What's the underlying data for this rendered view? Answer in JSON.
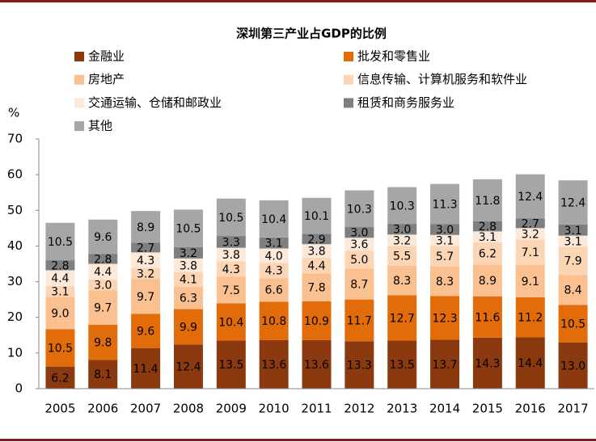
{
  "chart_data": {
    "type": "stacked_bar",
    "title": "深圳第三产业占GDP的比例",
    "y_label": "%",
    "categories": [
      "2005",
      "2006",
      "2007",
      "2008",
      "2009",
      "2010",
      "2011",
      "2012",
      "2013",
      "2014",
      "2015",
      "2016",
      "2017"
    ],
    "ylim": [
      0,
      70
    ],
    "yticks": [
      0,
      10,
      20,
      30,
      40,
      50,
      60,
      70
    ],
    "grid": false,
    "series": [
      {
        "name": "金融业",
        "color": "#8B3A0F",
        "values": [
          6.2,
          8.1,
          11.4,
          12.4,
          13.5,
          13.6,
          13.6,
          13.3,
          13.5,
          13.7,
          14.3,
          14.4,
          13.0
        ],
        "value_labels": [
          "6.2",
          "8.1",
          "11.4",
          "12.4",
          "13.5",
          "13.6",
          "13.6",
          "13.3",
          "13.5",
          "13.7",
          "14.3",
          "14.4",
          "13.0"
        ]
      },
      {
        "name": "批发和零售业",
        "color": "#E36C0A",
        "values": [
          10.5,
          9.8,
          9.6,
          9.9,
          10.4,
          10.8,
          10.9,
          11.7,
          12.7,
          12.3,
          11.6,
          11.2,
          10.5
        ],
        "value_labels": [
          "10.5",
          "9.8",
          "9.6",
          "9.9",
          "10.4",
          "10.8",
          "10.9",
          "11.7",
          "12.7",
          "12.3",
          "11.6",
          "11.2",
          "10.5"
        ]
      },
      {
        "name": "房地产",
        "color": "#FAC090",
        "values": [
          9.0,
          9.7,
          9.7,
          6.3,
          7.5,
          6.6,
          7.8,
          8.7,
          8.3,
          8.3,
          8.9,
          9.1,
          8.4
        ],
        "value_labels": [
          "9.0",
          "9.7",
          "9.7",
          "6.3",
          "7.5",
          "6.6",
          "7.8",
          "8.7",
          "8.3",
          "8.3",
          "8.9",
          "9.1",
          "8.4"
        ]
      },
      {
        "name": "信息传输、计算机服务和软件业",
        "color": "#FCD5B5",
        "values": [
          3.1,
          3.0,
          3.2,
          4.1,
          4.3,
          4.3,
          4.4,
          5.0,
          5.5,
          5.7,
          6.2,
          7.1,
          7.9
        ],
        "value_labels": [
          "3.1",
          "3.0",
          "3.2",
          "4.1",
          "4.3",
          "4.3",
          "4.4",
          "5.0",
          "5.5",
          "5.7",
          "6.2",
          "7.1",
          "7.9"
        ]
      },
      {
        "name": "交通运输、仓储和邮政业",
        "color": "#FDE9D9",
        "values": [
          4.4,
          4.4,
          4.3,
          3.8,
          3.8,
          4.0,
          3.8,
          3.6,
          3.2,
          3.1,
          3.1,
          3.2,
          3.1
        ],
        "value_labels": [
          "4.4",
          "4.4",
          "4.3",
          "3.8",
          "3.8",
          "4.0",
          "3.8",
          "3.6",
          "3.2",
          "3.1",
          "3.1",
          "3.2",
          "3.1"
        ]
      },
      {
        "name": "租赁和商务服务业",
        "color": "#7F7F7F",
        "values": [
          2.8,
          2.8,
          2.7,
          3.2,
          3.3,
          3.1,
          2.9,
          3.0,
          3.0,
          3.0,
          2.8,
          2.7,
          3.1
        ],
        "value_labels": [
          "2.8",
          "2.8",
          "2.7",
          "3.2",
          "3.3",
          "3.1",
          "2.9",
          "3.0",
          "3.0",
          "3.0",
          "2.8",
          "2.7",
          "3.1"
        ]
      },
      {
        "name": "其他",
        "color": "#A6A6A6",
        "values": [
          10.5,
          9.6,
          8.9,
          10.5,
          10.5,
          10.4,
          10.1,
          10.3,
          10.3,
          11.3,
          11.8,
          12.4,
          12.4
        ],
        "value_labels": [
          "10.5",
          "9.6",
          "8.9",
          "10.5",
          "10.5",
          "10.4",
          "10.1",
          "10.3",
          "10.3",
          "11.3",
          "11.8",
          "12.4",
          "12.4"
        ]
      }
    ]
  }
}
